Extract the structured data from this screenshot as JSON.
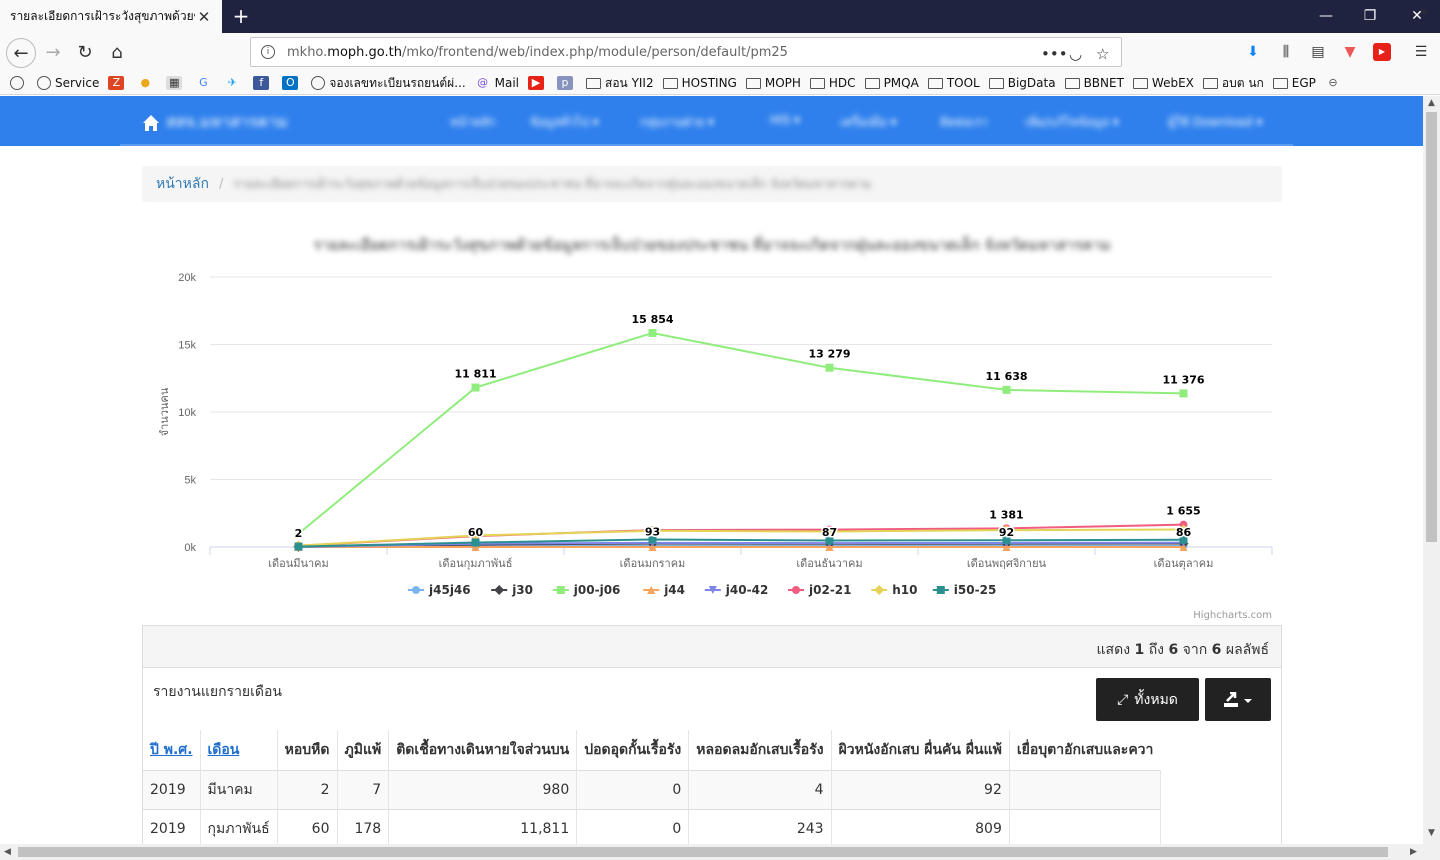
{
  "browser": {
    "tab_title": "รายละเอียดการเฝ้าระวังสุขภาพด้วยข้อมูล",
    "tab_close": "✕",
    "url_prefix": "mkho.",
    "url_domain": "moph.go.th",
    "url_path": "/mko/frontend/web/index.php/module/person/default/pm25",
    "url_more": "•••",
    "bookmarks_more": "»",
    "bookmarks": [
      {
        "label": "",
        "icon": "globe"
      },
      {
        "label": "Service",
        "icon": "globe"
      },
      {
        "label": "",
        "icon": "z-red"
      },
      {
        "label": "",
        "icon": "coin"
      },
      {
        "label": "",
        "icon": "qr"
      },
      {
        "label": "",
        "icon": "google"
      },
      {
        "label": "",
        "icon": "bird"
      },
      {
        "label": "",
        "icon": "facebook"
      },
      {
        "label": "",
        "icon": "outlook"
      },
      {
        "label": "จองเลขทะเบียนรถยนต์ผ่...",
        "icon": "globe"
      },
      {
        "label": "Mail",
        "icon": "mail"
      },
      {
        "label": "",
        "icon": "youtube"
      },
      {
        "label": "",
        "icon": "php"
      },
      {
        "label": "สอน YII2",
        "icon": "folder"
      },
      {
        "label": "HOSTING",
        "icon": "folder"
      },
      {
        "label": "MOPH",
        "icon": "folder"
      },
      {
        "label": "HDC",
        "icon": "folder"
      },
      {
        "label": "PMQA",
        "icon": "folder"
      },
      {
        "label": "TOOL",
        "icon": "folder"
      },
      {
        "label": "BigData",
        "icon": "folder"
      },
      {
        "label": "BBNET",
        "icon": "folder"
      },
      {
        "label": "WebEX",
        "icon": "folder"
      },
      {
        "label": "อบต นก",
        "icon": "folder"
      },
      {
        "label": "EGP",
        "icon": "folder"
      },
      {
        "label": "",
        "icon": "nissan"
      }
    ]
  },
  "site": {
    "brand": "สสจ.มหาสารคาม",
    "menu": [
      "หน้าหลัก",
      "ข้อมูลทั่วไป ▾",
      "กลุ่มงานฝ่าย ▾",
      "HIS ▾",
      "เครื่องมือ ▾",
      "ติดต่อเรา",
      "เพิ่ม/แก้ไขข้อมูล ▾",
      "ผู้ใช้ Download ▾"
    ]
  },
  "breadcrumb": {
    "home": "หน้าหลัก",
    "separator": "/",
    "current": "รายละเอียดการเฝ้าระวังสุขภาพด้วยข้อมูลการเจ็บป่วยของประชาชน ที่อาจจะเกิดจากฝุ่นละอองขนาดเล็ก จังหวัดมหาสารคาม"
  },
  "chart_data": {
    "type": "line",
    "title": "รายละเอียดการเฝ้าระวังสุขภาพด้วยข้อมูลการเจ็บป่วยของประชาชน ที่อาจจะเกิดจากฝุ่นละอองขนาดเล็ก จังหวัดมหาสารคาม",
    "ylabel": "จำนวนคน",
    "ylim": [
      0,
      20000
    ],
    "yticks": [
      "0k",
      "5k",
      "10k",
      "15k",
      "20k"
    ],
    "ytick_values": [
      0,
      5000,
      10000,
      15000,
      20000
    ],
    "categories": [
      "เดือนมีนาคม",
      "เดือนกุมภาพันธ์",
      "เดือนมกราคม",
      "เดือนธันวาคม",
      "เดือนพฤศจิกายน",
      "เดือนตุลาคม"
    ],
    "legend_position": "bottom",
    "grid": true,
    "credits": "Highcharts.com",
    "series": [
      {
        "name": "j45j46",
        "color": "#7cb5ec",
        "marker": "circle",
        "values": [
          2,
          60,
          93,
          87,
          92,
          86
        ]
      },
      {
        "name": "j30",
        "color": "#434348",
        "marker": "diamond",
        "values": [
          7,
          178,
          260,
          240,
          250,
          260
        ]
      },
      {
        "name": "j00-j06",
        "color": "#90ed7d",
        "marker": "square",
        "values": [
          980,
          11811,
          15854,
          13279,
          11638,
          11376
        ]
      },
      {
        "name": "j44",
        "color": "#f7a35c",
        "marker": "triangle",
        "values": [
          0,
          0,
          0,
          0,
          0,
          0
        ]
      },
      {
        "name": "j40-42",
        "color": "#8085e9",
        "marker": "triangle-down",
        "values": [
          4,
          243,
          310,
          290,
          300,
          320
        ]
      },
      {
        "name": "j02-21",
        "color": "#f15c80",
        "marker": "circle",
        "values": [
          92,
          809,
          1250,
          1290,
          1381,
          1655
        ]
      },
      {
        "name": "h10",
        "color": "#e4d354",
        "marker": "diamond",
        "values": [
          100,
          850,
          1200,
          1150,
          1250,
          1300
        ]
      },
      {
        "name": "i50-25",
        "color": "#2b908f",
        "marker": "square",
        "values": [
          30,
          330,
          560,
          480,
          500,
          540
        ]
      }
    ],
    "data_labels": [
      {
        "series": 0,
        "point": 0,
        "text": "2"
      },
      {
        "series": 0,
        "point": 1,
        "text": "60"
      },
      {
        "series": 0,
        "point": 2,
        "text": "93"
      },
      {
        "series": 0,
        "point": 3,
        "text": "87"
      },
      {
        "series": 0,
        "point": 4,
        "text": "92"
      },
      {
        "series": 0,
        "point": 5,
        "text": "86"
      },
      {
        "series": 2,
        "point": 1,
        "text": "11 811"
      },
      {
        "series": 2,
        "point": 2,
        "text": "15 854"
      },
      {
        "series": 2,
        "point": 3,
        "text": "13 279"
      },
      {
        "series": 2,
        "point": 4,
        "text": "11 638"
      },
      {
        "series": 2,
        "point": 5,
        "text": "11 376"
      },
      {
        "series": 5,
        "point": 4,
        "text": "1 381"
      },
      {
        "series": 5,
        "point": 5,
        "text": "1 655"
      }
    ]
  },
  "table_panel": {
    "summary_prefix": "แสดง",
    "summary_from": "1",
    "summary_to_word": "ถึง",
    "summary_to": "6",
    "summary_of_word": "จาก",
    "summary_total": "6",
    "summary_suffix": "ผลลัพธ์",
    "report_title": "รายงานแยกรายเดือน",
    "btn_all": "ทั้งหมด",
    "columns": [
      "ปี พ.ศ.",
      "เดือน",
      "หอบหืด",
      "ภูมิแพ้",
      "ติดเชื้อทางเดินหายใจส่วนบน",
      "ปอดอุดกั้นเรื้อรัง",
      "หลอดลมอักเสบเรื้อรัง",
      "ผิวหนังอักเสบ ผื่นคัน ผื่นแพ้",
      "เยื่อบุตาอักเสบและควา"
    ],
    "rows": [
      [
        "2019",
        "มีนาคม",
        "2",
        "7",
        "980",
        "0",
        "4",
        "92",
        ""
      ],
      [
        "2019",
        "กุมภาพันธ์",
        "60",
        "178",
        "11,811",
        "0",
        "243",
        "809",
        ""
      ]
    ]
  }
}
